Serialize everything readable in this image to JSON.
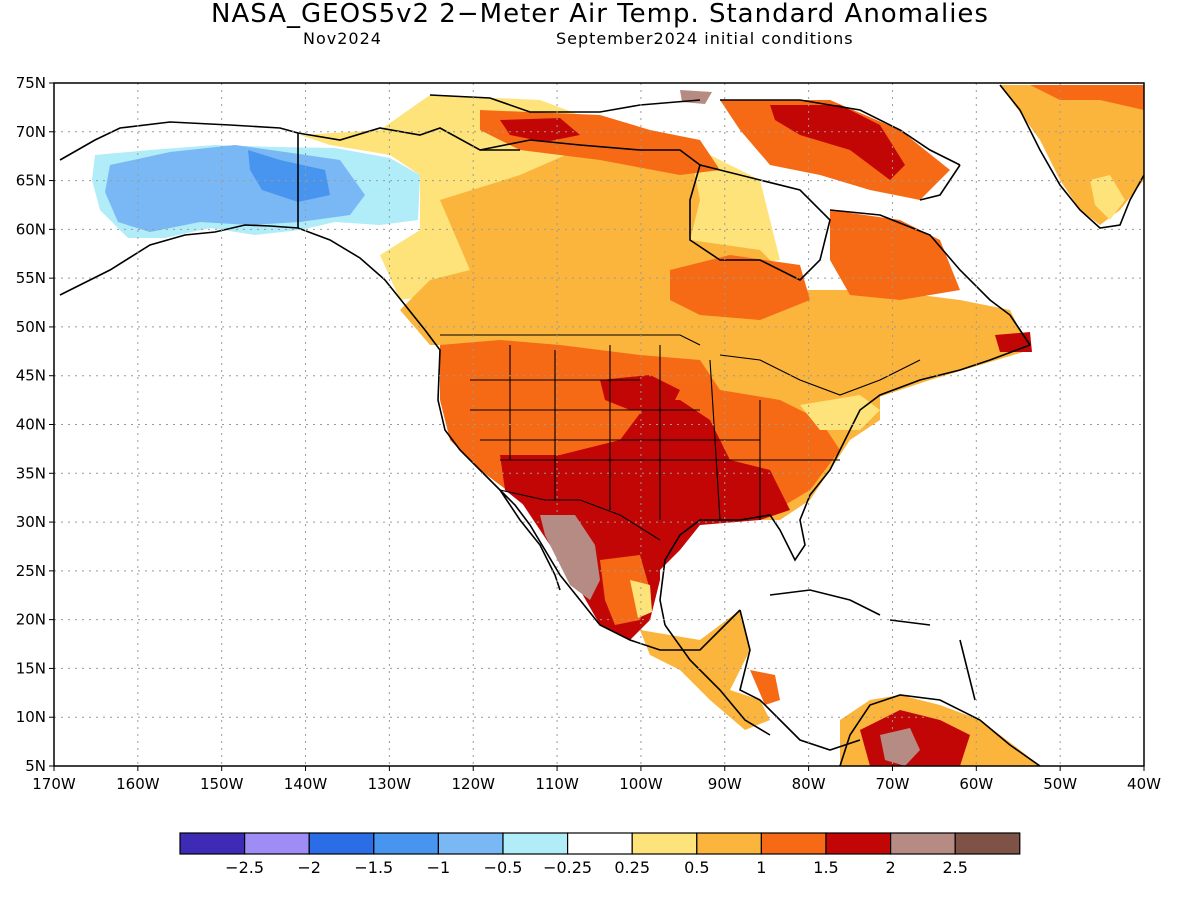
{
  "header": {
    "title": "NASA_GEOS5v2 2−Meter Air Temp. Standard Anomalies",
    "forecast_month": "Nov2024",
    "initial_conditions": "September2024 initial conditions"
  },
  "map": {
    "lat_labels": [
      "75N",
      "70N",
      "65N",
      "60N",
      "55N",
      "50N",
      "45N",
      "40N",
      "35N",
      "30N",
      "25N",
      "20N",
      "15N",
      "10N",
      "5N"
    ],
    "lon_labels": [
      "170W",
      "160W",
      "150W",
      "140W",
      "130W",
      "120W",
      "110W",
      "100W",
      "90W",
      "80W",
      "70W",
      "60W",
      "50W",
      "40W"
    ],
    "colors": {
      "land_outline": "#000000",
      "grid": "#9a9a9a",
      "frame": "#000000"
    },
    "anomaly_regions": [
      {
        "region": "Alaska interior",
        "class": "-1 to -0.5"
      },
      {
        "region": "Alaska core",
        "class": "-1.5 to -1"
      },
      {
        "region": "Yukon / Alaska margin",
        "class": "-0.5 to -0.25"
      },
      {
        "region": "Canada prairies & north",
        "class": "0.5 to 1"
      },
      {
        "region": "Hudson Bay east",
        "class": "1 to 1.5"
      },
      {
        "region": "Arctic islands / Baffin",
        "class": "1.5 to 2"
      },
      {
        "region": "Western US",
        "class": "1 to 1.5"
      },
      {
        "region": "Southern Plains / Texas",
        "class": "1.5 to 2"
      },
      {
        "region": "Northern Mexico",
        "class": "2 to 2.5"
      },
      {
        "region": "Greenland",
        "class": "0.5 to 1"
      },
      {
        "region": "Northern South America",
        "class": "1.5 to 2"
      }
    ]
  },
  "colorbar": {
    "labels": [
      "−2.5",
      "−2",
      "−1.5",
      "−1",
      "−0.5",
      "−0.25",
      "0.25",
      "0.5",
      "1",
      "1.5",
      "2",
      "2.5"
    ],
    "colors": [
      "#3d2bb5",
      "#9f8df5",
      "#2a6de6",
      "#4795ef",
      "#7ab7f5",
      "#b1ecf9",
      "#ffffff",
      "#fde37a",
      "#fbb43c",
      "#f76a15",
      "#c20606",
      "#b68b83",
      "#7f5247"
    ]
  }
}
